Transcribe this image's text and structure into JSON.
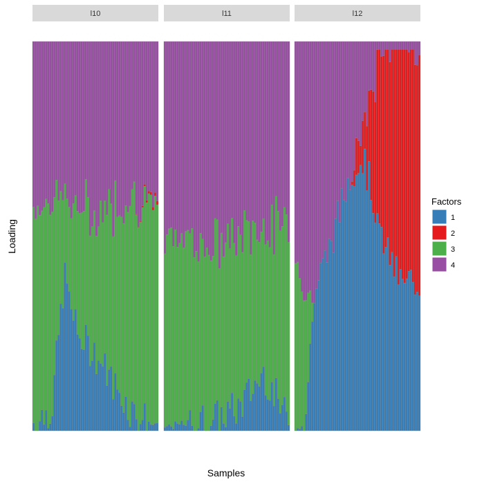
{
  "chart_data": {
    "type": "stacked-bar",
    "xlabel": "Samples",
    "ylabel": "Loading",
    "ylim": [
      0,
      1
    ],
    "grid": false,
    "legend": {
      "title": "Factors",
      "placement": "right",
      "entries": [
        {
          "label": "1",
          "color": "#377EB8"
        },
        {
          "label": "2",
          "color": "#E41A1C"
        },
        {
          "label": "3",
          "color": "#4DAF4A"
        },
        {
          "label": "4",
          "color": "#984EA3"
        }
      ]
    },
    "stack_order_bottom_to_top": [
      "1",
      "3",
      "2",
      "4"
    ],
    "panels": [
      {
        "label": "l10",
        "samples": 60,
        "keypoints": [
          {
            "position": 0.0,
            "factor1": 0.02,
            "factor3": 0.55,
            "factor2": 0.0
          },
          {
            "position": 0.15,
            "factor1": 0.06,
            "factor3": 0.54,
            "factor2": 0.0
          },
          {
            "position": 0.25,
            "factor1": 0.4,
            "factor3": 0.2,
            "factor2": 0.0
          },
          {
            "position": 0.35,
            "factor1": 0.25,
            "factor3": 0.32,
            "factor2": 0.0
          },
          {
            "position": 0.5,
            "factor1": 0.2,
            "factor3": 0.36,
            "factor2": 0.0
          },
          {
            "position": 0.65,
            "factor1": 0.12,
            "factor3": 0.46,
            "factor2": 0.0
          },
          {
            "position": 0.8,
            "factor1": 0.05,
            "factor3": 0.56,
            "factor2": 0.0
          },
          {
            "position": 1.0,
            "factor1": 0.01,
            "factor3": 0.55,
            "factor2": 0.01
          }
        ]
      },
      {
        "label": "l11",
        "samples": 60,
        "keypoints": [
          {
            "position": 0.0,
            "factor1": 0.01,
            "factor3": 0.48,
            "factor2": 0.0
          },
          {
            "position": 0.2,
            "factor1": 0.02,
            "factor3": 0.48,
            "factor2": 0.0
          },
          {
            "position": 0.4,
            "factor1": 0.03,
            "factor3": 0.44,
            "factor2": 0.0
          },
          {
            "position": 0.6,
            "factor1": 0.06,
            "factor3": 0.44,
            "factor2": 0.0
          },
          {
            "position": 0.8,
            "factor1": 0.15,
            "factor3": 0.38,
            "factor2": 0.0
          },
          {
            "position": 1.0,
            "factor1": 0.02,
            "factor3": 0.5,
            "factor2": 0.0
          }
        ]
      },
      {
        "label": "l12",
        "samples": 60,
        "keypoints": [
          {
            "position": 0.0,
            "factor1": 0.0,
            "factor3": 0.45,
            "factor2": 0.0
          },
          {
            "position": 0.08,
            "factor1": 0.03,
            "factor3": 0.33,
            "factor2": 0.0
          },
          {
            "position": 0.15,
            "factor1": 0.35,
            "factor3": 0.0,
            "factor2": 0.0
          },
          {
            "position": 0.3,
            "factor1": 0.5,
            "factor3": 0.0,
            "factor2": 0.0
          },
          {
            "position": 0.45,
            "factor1": 0.67,
            "factor3": 0.0,
            "factor2": 0.0
          },
          {
            "position": 0.55,
            "factor1": 0.7,
            "factor3": 0.0,
            "factor2": 0.12
          },
          {
            "position": 0.7,
            "factor1": 0.5,
            "factor3": 0.0,
            "factor2": 0.5
          },
          {
            "position": 0.85,
            "factor1": 0.4,
            "factor3": 0.0,
            "factor2": 0.6
          },
          {
            "position": 1.0,
            "factor1": 0.38,
            "factor3": 0.0,
            "factor2": 0.62
          }
        ]
      }
    ]
  }
}
